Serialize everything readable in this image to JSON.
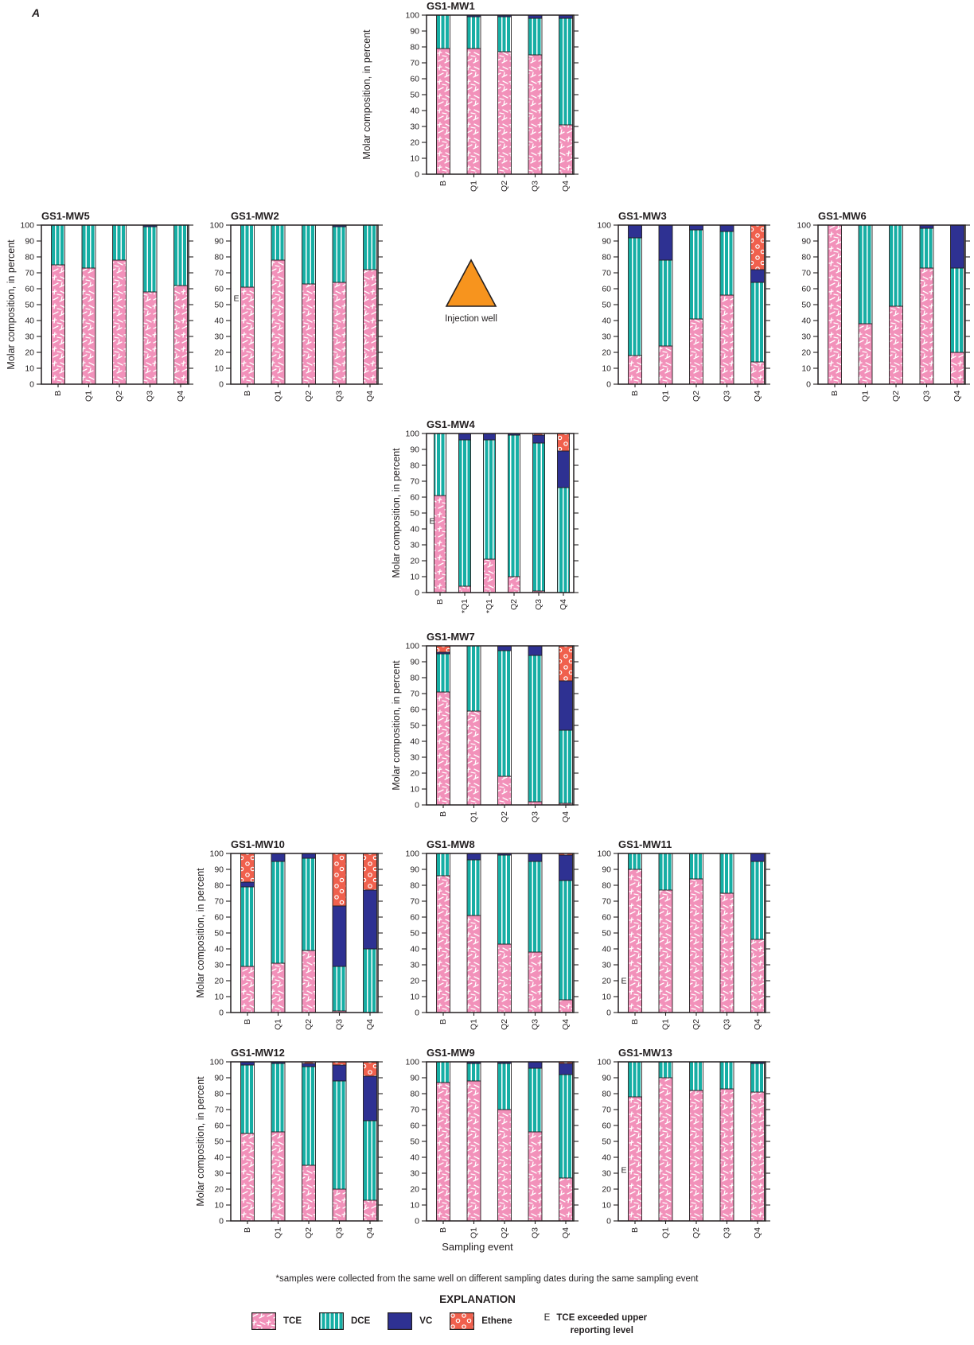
{
  "figure_label": "A",
  "axis": {
    "y_label": "Molar composition, in percent",
    "x_label": "Sampling event",
    "y_min": 0,
    "y_max": 100,
    "y_tick_step": 10,
    "y_ticks": [
      0,
      10,
      20,
      30,
      40,
      50,
      60,
      70,
      80,
      90,
      100
    ]
  },
  "injection_well": {
    "label": "Injection well",
    "color": "#F7941E"
  },
  "footnote": "*samples were collected from the same well on different sampling dates during the same sampling event",
  "legend": {
    "title": "EXPLANATION",
    "items": [
      {
        "label": "TCE",
        "color": "#F291BA",
        "pattern": "scratches"
      },
      {
        "label": "DCE",
        "color": "#16AEA4",
        "pattern": "vertical-lines"
      },
      {
        "label": "VC",
        "color": "#2E3192",
        "pattern": "solid"
      },
      {
        "label": "Ethene",
        "color": "#F0604D",
        "pattern": "circles"
      }
    ],
    "e_symbol": "E",
    "e_label": "TCE exceeded upper reporting level"
  },
  "chart_data": [
    {
      "well": "GS1-MW1",
      "type": "bar",
      "stacked": true,
      "ylim": [
        0,
        100
      ],
      "categories": [
        "B",
        "Q1",
        "Q2",
        "Q3",
        "Q4"
      ],
      "series": [
        {
          "name": "TCE",
          "values": [
            79,
            79,
            77,
            75,
            31
          ]
        },
        {
          "name": "DCE",
          "values": [
            21,
            20,
            22,
            23,
            67
          ]
        },
        {
          "name": "VC",
          "values": [
            0,
            1,
            1,
            2,
            2
          ]
        },
        {
          "name": "Ethene",
          "values": [
            0,
            0,
            0,
            0,
            0
          ]
        }
      ]
    },
    {
      "well": "GS1-MW5",
      "type": "bar",
      "stacked": true,
      "ylim": [
        0,
        100
      ],
      "categories": [
        "B",
        "Q1",
        "Q2",
        "Q3",
        "Q4"
      ],
      "series": [
        {
          "name": "TCE",
          "values": [
            75,
            73,
            78,
            58,
            62
          ]
        },
        {
          "name": "DCE",
          "values": [
            25,
            27,
            22,
            41,
            38
          ]
        },
        {
          "name": "VC",
          "values": [
            0,
            0,
            0,
            1,
            0
          ]
        },
        {
          "name": "Ethene",
          "values": [
            0,
            0,
            0,
            0,
            0
          ]
        }
      ]
    },
    {
      "well": "GS1-MW2",
      "type": "bar",
      "stacked": true,
      "ylim": [
        0,
        100
      ],
      "categories": [
        "B",
        "Q1",
        "Q2",
        "Q3",
        "Q4"
      ],
      "e_marker": {
        "category": "B",
        "y": 54
      },
      "series": [
        {
          "name": "TCE",
          "values": [
            61,
            78,
            63,
            64,
            72
          ]
        },
        {
          "name": "DCE",
          "values": [
            39,
            22,
            37,
            35,
            28
          ]
        },
        {
          "name": "VC",
          "values": [
            0,
            0,
            0,
            1,
            0
          ]
        },
        {
          "name": "Ethene",
          "values": [
            0,
            0,
            0,
            0,
            0
          ]
        }
      ]
    },
    {
      "well": "GS1-MW3",
      "type": "bar",
      "stacked": true,
      "ylim": [
        0,
        100
      ],
      "categories": [
        "B",
        "Q1",
        "Q2",
        "Q3",
        "Q4"
      ],
      "series": [
        {
          "name": "TCE",
          "values": [
            18,
            24,
            41,
            56,
            14
          ]
        },
        {
          "name": "DCE",
          "values": [
            74,
            54,
            56,
            40,
            50
          ]
        },
        {
          "name": "VC",
          "values": [
            8,
            22,
            3,
            4,
            8
          ]
        },
        {
          "name": "Ethene",
          "values": [
            0,
            0,
            0,
            0,
            28
          ]
        }
      ]
    },
    {
      "well": "GS1-MW6",
      "type": "bar",
      "stacked": true,
      "ylim": [
        0,
        100
      ],
      "categories": [
        "B",
        "Q1",
        "Q2",
        "Q3",
        "Q4"
      ],
      "series": [
        {
          "name": "TCE",
          "values": [
            100,
            38,
            49,
            73,
            20
          ]
        },
        {
          "name": "DCE",
          "values": [
            0,
            62,
            51,
            25,
            53
          ]
        },
        {
          "name": "VC",
          "values": [
            0,
            0,
            0,
            2,
            27
          ]
        },
        {
          "name": "Ethene",
          "values": [
            0,
            0,
            0,
            0,
            0
          ]
        }
      ]
    },
    {
      "well": "GS1-MW4",
      "type": "bar",
      "stacked": true,
      "ylim": [
        0,
        100
      ],
      "categories": [
        "B",
        "*Q1",
        "*Q1",
        "Q2",
        "Q3",
        "Q4"
      ],
      "e_marker": {
        "category": "B",
        "y": 45
      },
      "series": [
        {
          "name": "TCE",
          "values": [
            61,
            4,
            21,
            10,
            1,
            0
          ]
        },
        {
          "name": "DCE",
          "values": [
            39,
            92,
            75,
            89,
            93,
            66
          ]
        },
        {
          "name": "VC",
          "values": [
            0,
            4,
            4,
            1,
            5,
            23
          ]
        },
        {
          "name": "Ethene",
          "values": [
            0,
            0,
            0,
            0,
            1,
            11
          ]
        }
      ]
    },
    {
      "well": "GS1-MW7",
      "type": "bar",
      "stacked": true,
      "ylim": [
        0,
        100
      ],
      "categories": [
        "B",
        "Q1",
        "Q2",
        "Q3",
        "Q4"
      ],
      "series": [
        {
          "name": "TCE",
          "values": [
            71,
            59,
            18,
            2,
            1
          ]
        },
        {
          "name": "DCE",
          "values": [
            24,
            41,
            79,
            92,
            46
          ]
        },
        {
          "name": "VC",
          "values": [
            1,
            0,
            3,
            6,
            31
          ]
        },
        {
          "name": "Ethene",
          "values": [
            4,
            0,
            0,
            0,
            22
          ]
        }
      ]
    },
    {
      "well": "GS1-MW10",
      "type": "bar",
      "stacked": true,
      "ylim": [
        0,
        100
      ],
      "categories": [
        "B",
        "Q1",
        "Q2",
        "Q3",
        "Q4"
      ],
      "series": [
        {
          "name": "TCE",
          "values": [
            29,
            31,
            39,
            1,
            0
          ]
        },
        {
          "name": "DCE",
          "values": [
            50,
            64,
            58,
            28,
            40
          ]
        },
        {
          "name": "VC",
          "values": [
            3,
            5,
            3,
            38,
            37
          ]
        },
        {
          "name": "Ethene",
          "values": [
            18,
            0,
            0,
            33,
            23
          ]
        }
      ]
    },
    {
      "well": "GS1-MW8",
      "type": "bar",
      "stacked": true,
      "ylim": [
        0,
        100
      ],
      "categories": [
        "B",
        "Q1",
        "Q2",
        "Q3",
        "Q4"
      ],
      "series": [
        {
          "name": "TCE",
          "values": [
            86,
            61,
            43,
            38,
            8
          ]
        },
        {
          "name": "DCE",
          "values": [
            14,
            35,
            56,
            57,
            75
          ]
        },
        {
          "name": "VC",
          "values": [
            0,
            4,
            1,
            5,
            16
          ]
        },
        {
          "name": "Ethene",
          "values": [
            0,
            0,
            0,
            0,
            1
          ]
        }
      ]
    },
    {
      "well": "GS1-MW11",
      "type": "bar",
      "stacked": true,
      "ylim": [
        0,
        100
      ],
      "categories": [
        "B",
        "Q1",
        "Q2",
        "Q3",
        "Q4"
      ],
      "e_marker": {
        "category": "B",
        "y": 20
      },
      "series": [
        {
          "name": "TCE",
          "values": [
            90,
            77,
            84,
            75,
            46
          ]
        },
        {
          "name": "DCE",
          "values": [
            10,
            23,
            16,
            25,
            49
          ]
        },
        {
          "name": "VC",
          "values": [
            0,
            0,
            0,
            0,
            5
          ]
        },
        {
          "name": "Ethene",
          "values": [
            0,
            0,
            0,
            0,
            0
          ]
        }
      ]
    },
    {
      "well": "GS1-MW12",
      "type": "bar",
      "stacked": true,
      "ylim": [
        0,
        100
      ],
      "categories": [
        "B",
        "Q1",
        "Q2",
        "Q3",
        "Q4"
      ],
      "series": [
        {
          "name": "TCE",
          "values": [
            55,
            56,
            35,
            20,
            13
          ]
        },
        {
          "name": "DCE",
          "values": [
            43,
            43,
            62,
            68,
            50
          ]
        },
        {
          "name": "VC",
          "values": [
            2,
            1,
            2,
            10,
            28
          ]
        },
        {
          "name": "Ethene",
          "values": [
            0,
            0,
            1,
            2,
            9
          ]
        }
      ]
    },
    {
      "well": "GS1-MW9",
      "type": "bar",
      "stacked": true,
      "ylim": [
        0,
        100
      ],
      "categories": [
        "B",
        "Q1",
        "Q2",
        "Q3",
        "Q4"
      ],
      "series": [
        {
          "name": "TCE",
          "values": [
            87,
            88,
            70,
            56,
            27
          ]
        },
        {
          "name": "DCE",
          "values": [
            13,
            11,
            29,
            40,
            65
          ]
        },
        {
          "name": "VC",
          "values": [
            0,
            1,
            1,
            4,
            7
          ]
        },
        {
          "name": "Ethene",
          "values": [
            0,
            0,
            0,
            0,
            1
          ]
        }
      ]
    },
    {
      "well": "GS1-MW13",
      "type": "bar",
      "stacked": true,
      "ylim": [
        0,
        100
      ],
      "categories": [
        "B",
        "Q1",
        "Q2",
        "Q3",
        "Q4"
      ],
      "e_marker": {
        "category": "B",
        "y": 32
      },
      "series": [
        {
          "name": "TCE",
          "values": [
            78,
            90,
            82,
            83,
            81
          ]
        },
        {
          "name": "DCE",
          "values": [
            22,
            10,
            18,
            17,
            18
          ]
        },
        {
          "name": "VC",
          "values": [
            0,
            0,
            0,
            0,
            1
          ]
        },
        {
          "name": "Ethene",
          "values": [
            0,
            0,
            0,
            0,
            0
          ]
        }
      ]
    }
  ]
}
